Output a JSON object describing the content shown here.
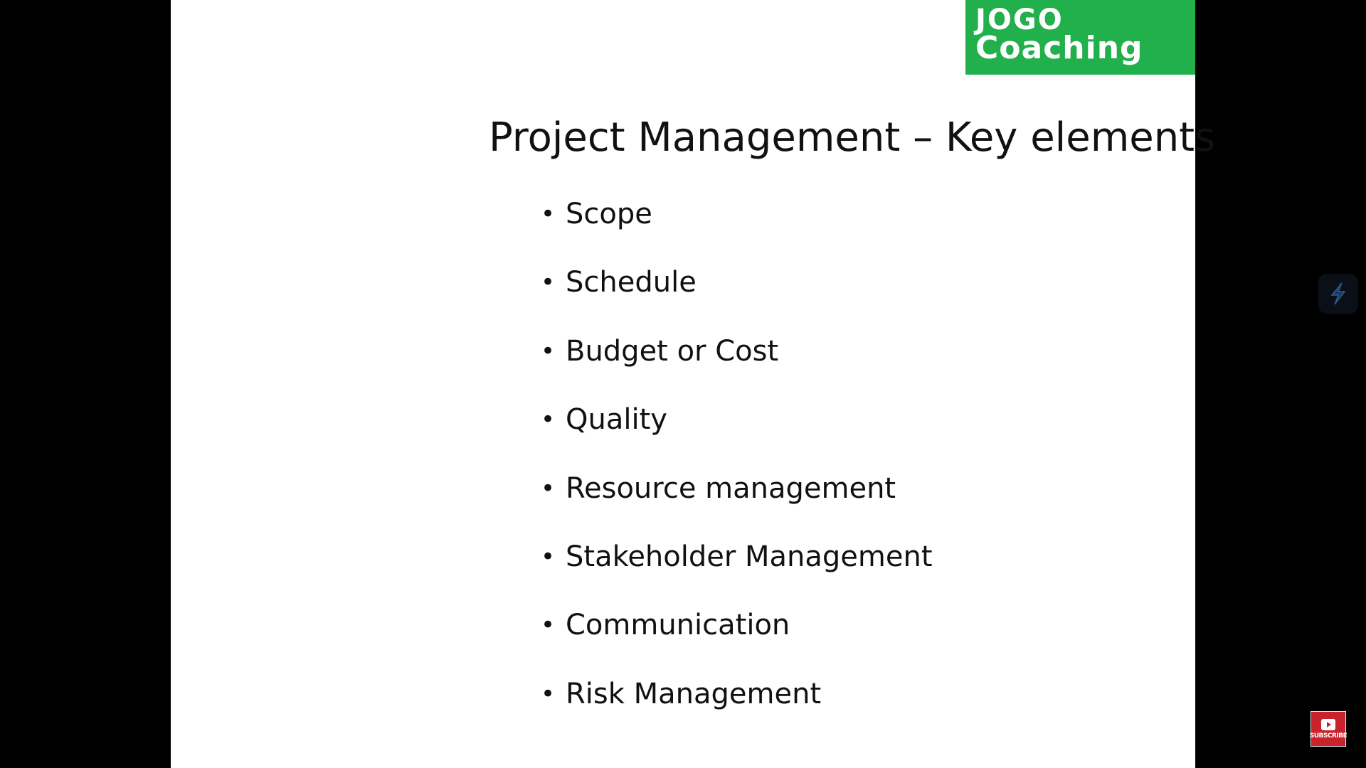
{
  "logo": {
    "line1": "JOGO",
    "line2": "Coaching",
    "color": "#21b04b"
  },
  "slide": {
    "title": "Project Management – Key elements",
    "bullet_glyph": "•",
    "bullets": [
      "Scope",
      "Schedule",
      "Budget or Cost",
      "Quality",
      "Resource management",
      "Stakeholder Management",
      "Communication",
      "Risk Management"
    ]
  },
  "overlays": {
    "side_widget_icon": "lightning-s-icon",
    "subscribe_label": "SUBSCRIBE",
    "subscribe_icon": "play-icon",
    "subscribe_color": "#c8232c"
  }
}
